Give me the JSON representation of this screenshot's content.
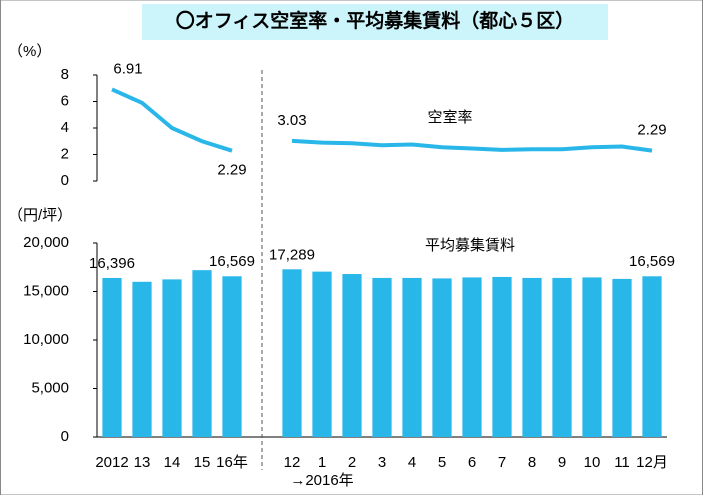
{
  "title": "〇オフィス空室率・平均募集賃料（都心５区）",
  "chart_data": [
    {
      "type": "line",
      "y_unit": "（%）",
      "annotation": "空室率",
      "color": "#29b6e8",
      "values": [
        6.91,
        5.9,
        4.0,
        3.0,
        2.29,
        null,
        3.03,
        2.9,
        2.85,
        2.7,
        2.75,
        2.55,
        2.45,
        2.35,
        2.4,
        2.4,
        2.55,
        2.6,
        2.29
      ],
      "value_labels": [
        "6.91",
        null,
        null,
        null,
        "2.29",
        null,
        "3.03",
        null,
        null,
        null,
        null,
        null,
        null,
        null,
        null,
        null,
        null,
        null,
        "2.29"
      ],
      "ylim": [
        0,
        8
      ],
      "yticks": [
        0,
        2,
        4,
        6,
        8
      ]
    },
    {
      "type": "bar",
      "y_unit": "（円/坪）",
      "annotation": "平均募集賃料",
      "x_annotation": "→2016年",
      "color": "#29b6e8",
      "categories": [
        "2012",
        "13",
        "14",
        "15",
        "16年",
        null,
        "12",
        "1",
        "2",
        "3",
        "4",
        "5",
        "6",
        "7",
        "8",
        "9",
        "10",
        "11",
        "12月"
      ],
      "values": [
        16396,
        16000,
        16250,
        17200,
        16569,
        null,
        17289,
        17050,
        16800,
        16400,
        16400,
        16350,
        16450,
        16500,
        16400,
        16400,
        16450,
        16300,
        16569
      ],
      "value_labels": [
        "16,396",
        null,
        null,
        null,
        "16,569",
        null,
        "17,289",
        null,
        null,
        null,
        null,
        null,
        null,
        null,
        null,
        null,
        null,
        null,
        "16,569"
      ],
      "ylim": [
        0,
        20000
      ],
      "yticks": [
        0,
        {
          "value": 5000,
          "label": "5,000"
        },
        {
          "value": 10000,
          "label": "10,000"
        },
        {
          "value": 15000,
          "label": "15,000"
        },
        {
          "value": 20000,
          "label": "20,000"
        }
      ]
    }
  ]
}
